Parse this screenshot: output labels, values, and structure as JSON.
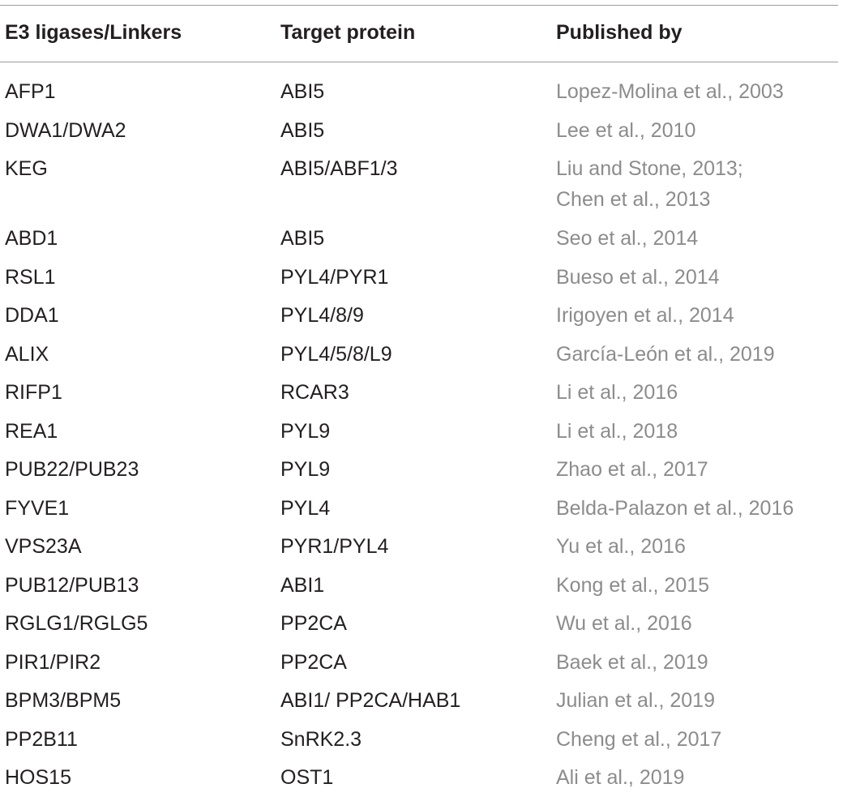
{
  "table": {
    "headers": [
      "E3 ligases/Linkers",
      "Target protein",
      "Published by"
    ],
    "rows": [
      {
        "e3": "AFP1",
        "target": "ABI5",
        "refs": [
          "Lopez-Molina et al., 2003"
        ]
      },
      {
        "e3": "DWA1/DWA2",
        "target": "ABI5",
        "refs": [
          "Lee et al., 2010"
        ]
      },
      {
        "e3": "KEG",
        "target": "ABI5/ABF1/3",
        "refs": [
          "Liu and Stone, 2013;",
          "Chen et al., 2013"
        ]
      },
      {
        "e3": "ABD1",
        "target": "ABI5",
        "refs": [
          "Seo et al., 2014"
        ]
      },
      {
        "e3": "RSL1",
        "target": "PYL4/PYR1",
        "refs": [
          "Bueso et al., 2014"
        ]
      },
      {
        "e3": "DDA1",
        "target": "PYL4/8/9",
        "refs": [
          "Irigoyen et al., 2014"
        ]
      },
      {
        "e3": "ALIX",
        "target": "PYL4/5/8/L9",
        "refs": [
          "García-León et al., 2019"
        ]
      },
      {
        "e3": "RIFP1",
        "target": "RCAR3",
        "refs": [
          "Li et al., 2016"
        ]
      },
      {
        "e3": "REA1",
        "target": "PYL9",
        "refs": [
          "Li et al., 2018"
        ]
      },
      {
        "e3": "PUB22/PUB23",
        "target": "PYL9",
        "refs": [
          "Zhao et al., 2017"
        ]
      },
      {
        "e3": "FYVE1",
        "target": "PYL4",
        "refs": [
          "Belda-Palazon et al., 2016"
        ]
      },
      {
        "e3": "VPS23A",
        "target": "PYR1/PYL4",
        "refs": [
          "Yu et al., 2016"
        ]
      },
      {
        "e3": "PUB12/PUB13",
        "target": "ABI1",
        "refs": [
          "Kong et al., 2015"
        ]
      },
      {
        "e3": "RGLG1/RGLG5",
        "target": "PP2CA",
        "refs": [
          "Wu et al., 2016"
        ]
      },
      {
        "e3": "PIR1/PIR2",
        "target": "PP2CA",
        "refs": [
          "Baek et al., 2019"
        ]
      },
      {
        "e3": "BPM3/BPM5",
        "target": "ABI1/ PP2CA/HAB1",
        "refs": [
          "Julian et al., 2019"
        ]
      },
      {
        "e3": "PP2B11",
        "target": "SnRK2.3",
        "refs": [
          "Cheng et al., 2017"
        ]
      },
      {
        "e3": "HOS15",
        "target": "OST1",
        "refs": [
          "Ali et al., 2019"
        ]
      }
    ]
  }
}
